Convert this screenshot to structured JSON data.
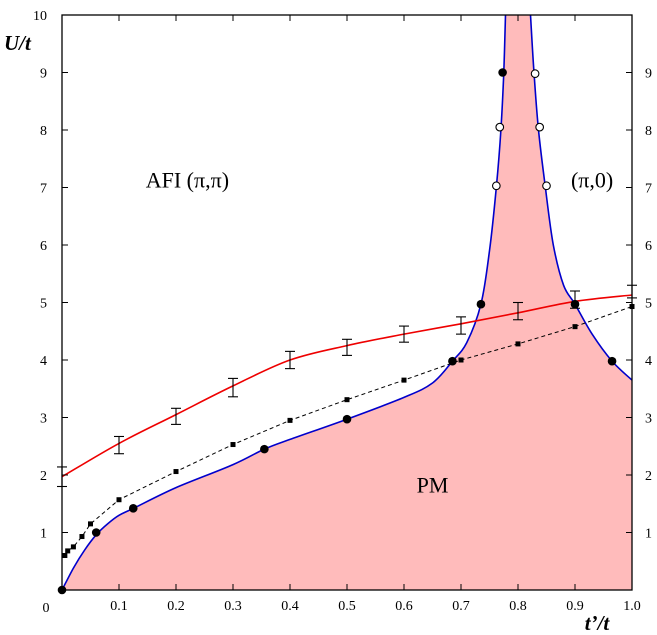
{
  "chart_data": {
    "type": "line",
    "xlabel": "t’/t",
    "ylabel": "U/t",
    "xlim": [
      0,
      1.0
    ],
    "ylim": [
      0,
      10
    ],
    "x_ticks": [
      0,
      0.1,
      0.2,
      0.3,
      0.4,
      0.5,
      0.6,
      0.7,
      0.8,
      0.9,
      1.0
    ],
    "x_tick_labels": [
      "0",
      "0.1",
      "0.2",
      "0.3",
      "0.4",
      "0.5",
      "0.6",
      "0.7",
      "0.8",
      "0.9",
      "1.0"
    ],
    "y_ticks": [
      1,
      2,
      3,
      4,
      5,
      6,
      7,
      8,
      9,
      10
    ],
    "y_tick_labels": [
      "1",
      "2",
      "3",
      "4",
      "5",
      "6",
      "7",
      "8",
      "9",
      "10"
    ],
    "right_tick_labels": [
      "1",
      "2",
      "3",
      "4",
      "5",
      "6",
      "7",
      "8",
      "9"
    ],
    "annotations": [
      {
        "text": "AFI (π,π)",
        "x": 0.22,
        "y": 7.0
      },
      {
        "text": "(π,0)",
        "x": 0.93,
        "y": 7.0
      },
      {
        "text": "PM",
        "x": 0.65,
        "y": 1.7
      }
    ],
    "colors": {
      "boundary": "#0000cc",
      "pm_fill": "#ffbbbb",
      "red_curve": "#ee0000",
      "dashed": "#000000"
    },
    "series": [
      {
        "style": "blue-boundary-left",
        "points": [
          [
            0.0,
            0.0
          ],
          [
            0.02,
            0.38
          ],
          [
            0.04,
            0.7
          ],
          [
            0.06,
            0.96
          ],
          [
            0.08,
            1.15
          ],
          [
            0.1,
            1.3
          ],
          [
            0.125,
            1.42
          ],
          [
            0.2,
            1.78
          ],
          [
            0.3,
            2.18
          ],
          [
            0.355,
            2.45
          ],
          [
            0.4,
            2.62
          ],
          [
            0.5,
            2.97
          ],
          [
            0.6,
            3.35
          ],
          [
            0.65,
            3.6
          ],
          [
            0.685,
            3.98
          ],
          [
            0.71,
            4.3
          ],
          [
            0.735,
            4.97
          ],
          [
            0.75,
            5.9
          ],
          [
            0.762,
            7.0
          ],
          [
            0.77,
            8.0
          ],
          [
            0.775,
            9.0
          ],
          [
            0.778,
            10.0
          ]
        ]
      },
      {
        "style": "blue-boundary-right",
        "points": [
          [
            0.822,
            10.0
          ],
          [
            0.828,
            9.0
          ],
          [
            0.836,
            8.0
          ],
          [
            0.848,
            7.0
          ],
          [
            0.862,
            6.0
          ],
          [
            0.88,
            5.3
          ],
          [
            0.9,
            4.97
          ],
          [
            0.93,
            4.45
          ],
          [
            0.965,
            3.98
          ],
          [
            1.0,
            3.65
          ]
        ]
      },
      {
        "style": "red-curve",
        "points": [
          [
            0.0,
            1.97
          ],
          [
            0.1,
            2.55
          ],
          [
            0.2,
            3.05
          ],
          [
            0.3,
            3.55
          ],
          [
            0.4,
            4.0
          ],
          [
            0.5,
            4.25
          ],
          [
            0.6,
            4.45
          ],
          [
            0.7,
            4.63
          ],
          [
            0.8,
            4.82
          ],
          [
            0.9,
            5.02
          ],
          [
            1.0,
            5.13
          ]
        ]
      },
      {
        "style": "dashed-squares",
        "points": [
          [
            0.005,
            0.6
          ],
          [
            0.01,
            0.68
          ],
          [
            0.02,
            0.75
          ],
          [
            0.035,
            0.93
          ],
          [
            0.05,
            1.15
          ],
          [
            0.1,
            1.57
          ],
          [
            0.2,
            2.06
          ],
          [
            0.3,
            2.53
          ],
          [
            0.4,
            2.95
          ],
          [
            0.5,
            3.31
          ],
          [
            0.6,
            3.65
          ],
          [
            0.7,
            4.0
          ],
          [
            0.8,
            4.28
          ],
          [
            0.9,
            4.58
          ],
          [
            1.0,
            4.93
          ]
        ]
      },
      {
        "style": "filled-circles",
        "points": [
          [
            0.0,
            0.0
          ],
          [
            0.06,
            1.0
          ],
          [
            0.125,
            1.42
          ],
          [
            0.355,
            2.45
          ],
          [
            0.5,
            2.97
          ],
          [
            0.685,
            3.98
          ],
          [
            0.735,
            4.97
          ],
          [
            0.773,
            9.0
          ],
          [
            0.9,
            4.97
          ],
          [
            0.965,
            3.98
          ]
        ]
      },
      {
        "style": "open-circles",
        "points": [
          [
            0.768,
            8.05
          ],
          [
            0.762,
            7.03
          ],
          [
            0.83,
            8.98
          ],
          [
            0.838,
            8.05
          ],
          [
            0.85,
            7.03
          ]
        ]
      },
      {
        "style": "error-bars",
        "points": [
          [
            0.0,
            1.97,
            0.17
          ],
          [
            0.1,
            2.52,
            0.15
          ],
          [
            0.2,
            3.02,
            0.14
          ],
          [
            0.3,
            3.52,
            0.16
          ],
          [
            0.4,
            4.0,
            0.15
          ],
          [
            0.5,
            4.22,
            0.14
          ],
          [
            0.6,
            4.45,
            0.14
          ],
          [
            0.7,
            4.6,
            0.15
          ],
          [
            0.8,
            4.85,
            0.15
          ],
          [
            0.9,
            5.05,
            0.15
          ],
          [
            1.0,
            5.19,
            0.11
          ]
        ]
      }
    ]
  }
}
